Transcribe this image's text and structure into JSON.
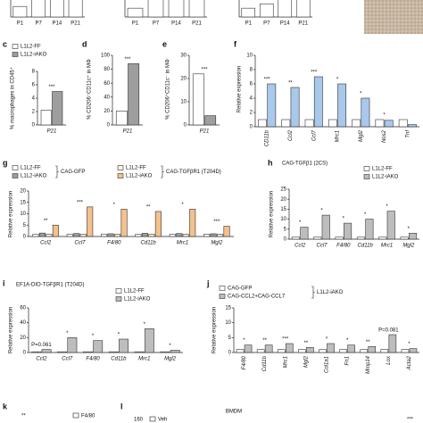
{
  "chart_data": [
    {
      "type": "bar",
      "categories": [
        "P1",
        "P7",
        "P14",
        "P21"
      ],
      "values": [
        1.2,
        2,
        4,
        5
      ],
      "color": "#ffffff",
      "ylim": [
        0,
        6
      ]
    },
    {
      "type": "bar",
      "categories": [
        "P1",
        "P7",
        "P14",
        "P21"
      ],
      "values": [
        1,
        3,
        5,
        6
      ],
      "color": "#ffffff",
      "ylim": [
        0,
        6
      ]
    },
    {
      "type": "bar",
      "categories": [
        "P1",
        "P7",
        "P14",
        "P21"
      ],
      "values": [
        1,
        1.5,
        4,
        5
      ],
      "color": "#ffffff",
      "ylim": [
        0,
        6
      ]
    },
    {
      "type": "bar",
      "panel": "c",
      "y_label": "% macrophages in CD45⁺",
      "categories": [
        "P21"
      ],
      "series": [
        {
          "name": "L1L2-FF",
          "color": "#ffffff",
          "values": [
            2.2
          ]
        },
        {
          "name": "L1L2-iAKO",
          "color": "#9e9e9e",
          "values": [
            5
          ]
        }
      ],
      "significance": [
        "***"
      ],
      "ylim": [
        0,
        8
      ],
      "yticks": [
        0,
        2,
        4,
        6,
        8
      ]
    },
    {
      "type": "bar",
      "panel": "d",
      "y_label": "% CD206⁻CD11c⁺ in MΦ",
      "categories": [
        "P21"
      ],
      "series": [
        {
          "color": "#ffffff",
          "values": [
            20
          ]
        },
        {
          "color": "#9e9e9e",
          "values": [
            88
          ]
        }
      ],
      "significance": [
        "***"
      ],
      "ylim": [
        0,
        100
      ],
      "yticks": [
        0,
        20,
        40,
        60,
        80,
        100
      ]
    },
    {
      "type": "bar",
      "panel": "e",
      "y_label": "% CD206⁺CD11c⁻ in MΦ",
      "categories": [
        "P21"
      ],
      "series": [
        {
          "color": "#ffffff",
          "values": [
            22
          ]
        },
        {
          "color": "#9e9e9e",
          "values": [
            4
          ]
        }
      ],
      "significance": [
        "***"
      ],
      "ylim": [
        0,
        30
      ],
      "yticks": [
        0,
        10,
        20,
        30
      ]
    },
    {
      "type": "bar",
      "panel": "f",
      "y_label": "Relative expression",
      "rotated_labels": true,
      "categories": [
        "CD11b",
        "Ccl2",
        "Ccl7",
        "Mrc1",
        "Mgl2",
        "Nos2",
        "Tnf"
      ],
      "series": [
        {
          "color": "#ffffff",
          "values": [
            1,
            1,
            1,
            1,
            1,
            1,
            1
          ]
        },
        {
          "color": "#a8c8ec",
          "values": [
            6,
            5.5,
            7,
            6,
            4,
            0.9,
            0.3
          ]
        }
      ],
      "significance": [
        "***",
        "**",
        "***",
        "*",
        "*",
        "*",
        null
      ],
      "ylim": [
        0,
        10
      ],
      "yticks": [
        0,
        2,
        4,
        6,
        8,
        10
      ]
    },
    {
      "type": "bar",
      "panel": "g",
      "y_label": "Relative expression",
      "legend_groups": [
        "CAG-GFP",
        "CAG-TGFβR1 (T204D)"
      ],
      "categories": [
        "Ccl2",
        "Ccl7",
        "F4/80",
        "Cd11b",
        "Mrc1",
        "Mgl2"
      ],
      "series": [
        {
          "name": "L1L2-FF",
          "color": "#ffffff",
          "values": [
            1,
            1,
            1,
            1,
            1,
            1
          ]
        },
        {
          "name": "L1L2-iAKO",
          "color": "#9e9e9e",
          "values": [
            1.5,
            1.3,
            1.2,
            1.4,
            1.3,
            1.2
          ]
        },
        {
          "name": "L1L2-FF",
          "color": "#fdf0e2",
          "values": [
            1,
            1,
            1,
            1,
            1,
            1
          ]
        },
        {
          "name": "L1L2-iAKO",
          "color": "#f4c08c",
          "values": [
            5,
            13,
            12,
            11,
            12,
            4.5
          ]
        }
      ],
      "significance": [
        "**",
        "***",
        "*",
        "**",
        "*",
        "***"
      ],
      "ylim": [
        0,
        20
      ],
      "yticks": [
        0,
        5,
        10,
        15,
        20
      ]
    },
    {
      "type": "bar",
      "panel": "h",
      "title": "CAG-TGFβ1 (2CS)",
      "y_label": "Relative expression",
      "categories": [
        "Ccl2",
        "Ccl7",
        "F4/80",
        "Cd11b",
        "Mrc1",
        "Mgl2"
      ],
      "series": [
        {
          "name": "L1L2-FF",
          "color": "#ffffff",
          "values": [
            1,
            1,
            1,
            1,
            1,
            1
          ]
        },
        {
          "name": "L1L2-iAKO",
          "color": "#bdbdbd",
          "values": [
            6,
            12,
            8,
            10,
            14,
            3
          ]
        }
      ],
      "significance": [
        "*",
        "*",
        "*",
        "*",
        "*",
        "*"
      ],
      "ylim": [
        0,
        25
      ],
      "yticks": [
        0,
        5,
        10,
        15,
        20,
        25
      ]
    },
    {
      "type": "bar",
      "panel": "i",
      "title": "EF1A-DIO-TGFβR1 (T204D)",
      "y_label": "Relative expression",
      "categories": [
        "Ccl2",
        "Ccl7",
        "F4/80",
        "Cd11b",
        "Mrc1",
        "Mgl2"
      ],
      "series": [
        {
          "name": "L1L2-FF",
          "color": "#ffffff",
          "values": [
            1,
            1,
            1,
            1,
            1,
            1
          ]
        },
        {
          "name": "L1L2-iAKO",
          "color": "#bdbdbd",
          "values": [
            4,
            20,
            16,
            18,
            32,
            3
          ]
        }
      ],
      "significance": [
        "P=0.061",
        "*",
        "*",
        "*",
        "*",
        "*"
      ],
      "ylim": [
        0,
        60
      ],
      "yticks": [
        0,
        20,
        40,
        60
      ]
    },
    {
      "type": "bar",
      "panel": "j",
      "y_label": "Relative expression",
      "rotated_labels": true,
      "legend_groups": [
        "L1L2-iAKO"
      ],
      "categories": [
        "F4/80",
        "Cd11b",
        "Mrc1",
        "Mgl2",
        "Col1a1",
        "Fn1",
        "Mmp14",
        "Lox",
        "Acta2"
      ],
      "series": [
        {
          "name": "CAG-GFP",
          "color": "#ffffff",
          "values": [
            1,
            1,
            1,
            1,
            1,
            1,
            1,
            1,
            1
          ]
        },
        {
          "name": "CAG-CCL2+CAG-CCL7",
          "color": "#bdbdbd",
          "values": [
            2.5,
            2.5,
            3,
            1.7,
            3,
            2.5,
            2,
            6,
            1.3
          ]
        }
      ],
      "significance": [
        "*",
        "**",
        "***",
        "**",
        "*",
        "*",
        "**",
        "P=0.081",
        "*"
      ],
      "ylim": [
        0,
        15
      ],
      "yticks": [
        0,
        5,
        10,
        15
      ]
    }
  ],
  "panel_k": {
    "panel": "k",
    "legend": "F4/80",
    "annotation": "**"
  },
  "panel_l": {
    "panel": "l",
    "title": "BMDM",
    "tick": 160,
    "legend": "Veh",
    "annotation": "***"
  }
}
